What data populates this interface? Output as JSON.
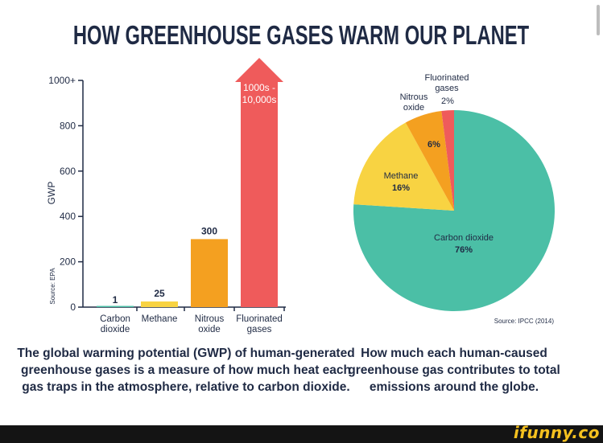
{
  "title": "HOW GREENHOUSE GASES WARM OUR PLANET",
  "colors": {
    "text": "#1f2a44",
    "co2": "#4bbfa6",
    "methane": "#f8d342",
    "nitrous": "#f4a020",
    "fluorinated": "#ef5b5b"
  },
  "chart_data": [
    {
      "type": "bar",
      "ylabel": "GWP",
      "source": "Source: EPA",
      "ylim": [
        0,
        1000
      ],
      "yticks": [
        "1000+",
        "800",
        "600",
        "400",
        "200",
        "0"
      ],
      "categories": [
        [
          "Carbon",
          "dioxide"
        ],
        [
          "Methane"
        ],
        [
          "Nitrous",
          "oxide"
        ],
        [
          "Fluorinated",
          "gases"
        ]
      ],
      "values": [
        1,
        25,
        300,
        1000
      ],
      "value_labels": [
        "1",
        "25",
        "300",
        [
          "1000s -",
          "10,000s"
        ]
      ],
      "caption": [
        "The global warming potential (GWP) of human-generated",
        "greenhouse gases is a measure of how much heat each",
        "gas traps in the atmosphere, relative to carbon dioxide."
      ]
    },
    {
      "type": "pie",
      "source": "Source: IPCC (2014)",
      "slices": [
        {
          "name": "Carbon dioxide",
          "value": 76,
          "label": "76%"
        },
        {
          "name": "Methane",
          "value": 16,
          "label": "16%"
        },
        {
          "name": "Nitrous oxide",
          "value": 6,
          "label": "6%"
        },
        {
          "name": "Fluorinated gases",
          "value": 2,
          "label": "2%"
        }
      ],
      "outside_labels": {
        "fluorinated": [
          "Fluorinated",
          "gases"
        ],
        "nitrous": [
          "Nitrous",
          "oxide"
        ]
      },
      "caption": [
        "How much each human-caused",
        "greenhouse gas contributes to total",
        "emissions around the globe."
      ]
    }
  ],
  "watermark": "ifunny.co"
}
